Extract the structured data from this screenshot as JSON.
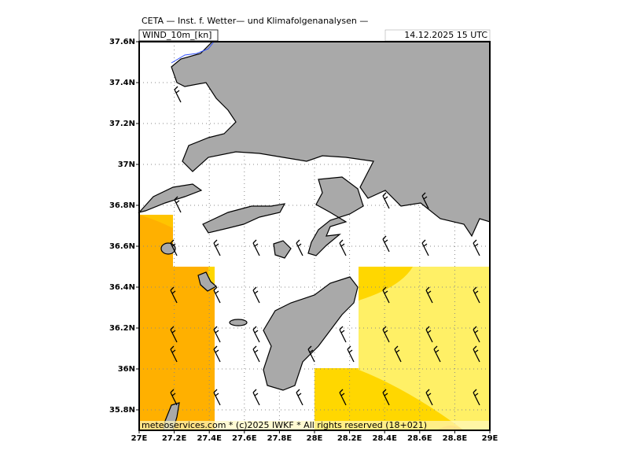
{
  "header": {
    "title": "CETA — Inst. f. Wetter— und Klimafolgenanalysen —",
    "product": "WIND_10m_[kn]",
    "datetime": "14.12.2025 15 UTC"
  },
  "footer": "meteoservices.com * (c)2025 IWKF * All rights reserved (18+021)",
  "map": {
    "xlim": [
      27,
      29
    ],
    "ylim": [
      35.7,
      37.6
    ],
    "xticks": [
      {
        "value": 27,
        "label": "27E"
      },
      {
        "value": 27.2,
        "label": "27.2E"
      },
      {
        "value": 27.4,
        "label": "27.4E"
      },
      {
        "value": 27.6,
        "label": "27.6E"
      },
      {
        "value": 27.8,
        "label": "27.8E"
      },
      {
        "value": 28,
        "label": "28E"
      },
      {
        "value": 28.2,
        "label": "28.2E"
      },
      {
        "value": 28.4,
        "label": "28.4E"
      },
      {
        "value": 28.6,
        "label": "28.6E"
      },
      {
        "value": 28.8,
        "label": "28.8E"
      },
      {
        "value": 29,
        "label": "29E"
      }
    ],
    "yticks": [
      {
        "value": 37.6,
        "label": "37.6N"
      },
      {
        "value": 37.4,
        "label": "37.4N"
      },
      {
        "value": 37.2,
        "label": "37.2N"
      },
      {
        "value": 37,
        "label": "37N"
      },
      {
        "value": 36.8,
        "label": "36.8N"
      },
      {
        "value": 36.6,
        "label": "36.6N"
      },
      {
        "value": 36.4,
        "label": "36.4N"
      },
      {
        "value": 36.2,
        "label": "36.2N"
      },
      {
        "value": 36,
        "label": "36N"
      },
      {
        "value": 35.8,
        "label": "35.8N"
      }
    ]
  }
}
